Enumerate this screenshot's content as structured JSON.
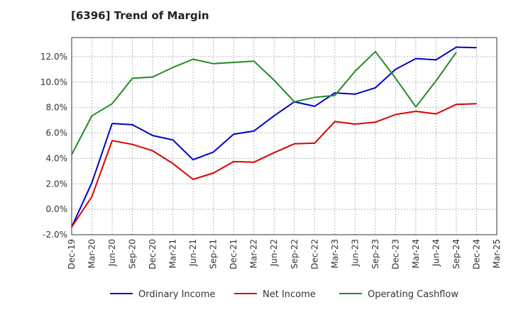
{
  "chart_data": {
    "type": "line",
    "title": "[6396]  Trend of Margin",
    "xlabel": "",
    "ylabel": "",
    "ylim": [
      -2.0,
      13.5
    ],
    "yticks": [
      -2.0,
      0.0,
      2.0,
      4.0,
      6.0,
      8.0,
      10.0,
      12.0
    ],
    "ytick_labels": [
      "-2.0%",
      "0.0%",
      "2.0%",
      "4.0%",
      "6.0%",
      "8.0%",
      "10.0%",
      "12.0%"
    ],
    "categories": [
      "Dec-19",
      "Mar-20",
      "Jun-20",
      "Sep-20",
      "Dec-20",
      "Mar-21",
      "Jun-21",
      "Sep-21",
      "Dec-21",
      "Mar-22",
      "Jun-22",
      "Sep-22",
      "Dec-22",
      "Mar-23",
      "Jun-23",
      "Sep-23",
      "Dec-23",
      "Mar-24",
      "Jun-24",
      "Sep-24",
      "Dec-24",
      "Mar-25"
    ],
    "grid": true,
    "legend_position": "bottom",
    "series": [
      {
        "name": "Ordinary Income",
        "color": "#0000cc",
        "values": [
          -1.4,
          2.1,
          6.75,
          6.65,
          5.8,
          5.45,
          3.9,
          4.5,
          5.9,
          6.15,
          7.35,
          8.45,
          8.1,
          9.15,
          9.05,
          9.55,
          11.0,
          11.85,
          11.75,
          12.75,
          12.7,
          null
        ]
      },
      {
        "name": "Net Income",
        "color": "#dd0000",
        "values": [
          -1.4,
          1.0,
          5.4,
          5.1,
          4.6,
          3.6,
          2.35,
          2.85,
          3.75,
          3.7,
          4.45,
          5.15,
          5.2,
          6.9,
          6.7,
          6.85,
          7.45,
          7.7,
          7.5,
          8.25,
          8.3,
          null
        ]
      },
      {
        "name": "Operating Cashflow",
        "color": "#228b22",
        "values": [
          4.3,
          7.35,
          8.3,
          10.3,
          10.4,
          11.15,
          11.8,
          11.45,
          11.55,
          11.65,
          10.15,
          8.45,
          8.8,
          8.95,
          10.85,
          12.4,
          10.3,
          8.05,
          10.1,
          12.35,
          null,
          null
        ]
      }
    ]
  }
}
